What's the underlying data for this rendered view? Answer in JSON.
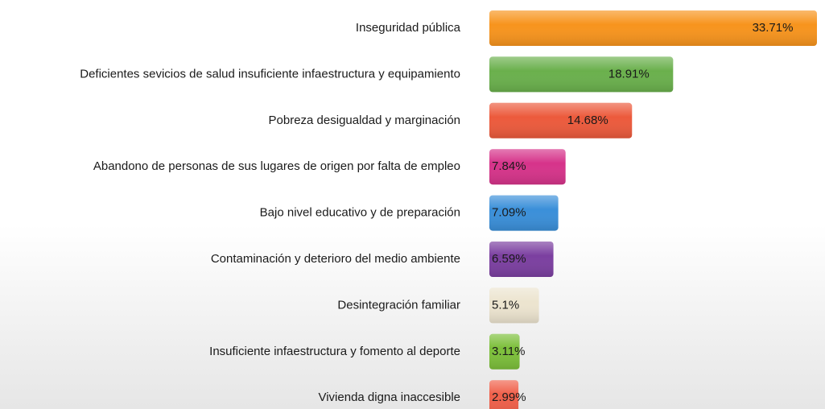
{
  "chart_data": {
    "type": "bar",
    "orientation": "horizontal",
    "categories": [
      "Inseguridad pública",
      "Deficientes sevicios de salud insuficiente infaestructura y equipamiento",
      "Pobreza desigualdad y marginación",
      "Abandono de personas de sus lugares de origen por falta de empleo",
      "Bajo nivel educativo y de preparación",
      "Contaminación y deterioro del medio ambiente",
      "Desintegración familiar",
      "Insuficiente infaestructura y fomento al deporte",
      "Vivienda digna inaccesible"
    ],
    "values": [
      33.71,
      18.91,
      14.68,
      7.84,
      7.09,
      6.59,
      5.1,
      3.11,
      2.99
    ],
    "value_labels": [
      "33.71%",
      "18.91%",
      "14.68%",
      "7.84%",
      "7.09%",
      "6.59%",
      "5.1%",
      "3.11%",
      "2.99%"
    ],
    "colors": [
      "#f7941d",
      "#6ab04c",
      "#ec5a3c",
      "#d6338a",
      "#3a8fd9",
      "#7b3fa0",
      "#ece4cf",
      "#7cbf3a",
      "#f0604a"
    ]
  }
}
